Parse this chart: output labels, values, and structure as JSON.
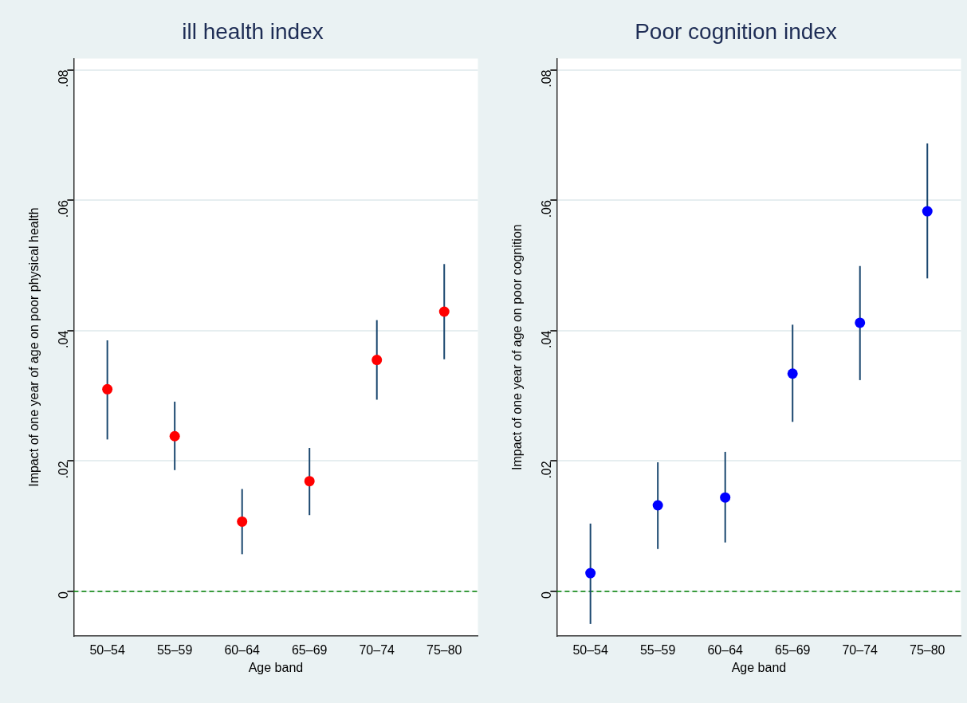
{
  "chart_data": [
    {
      "type": "scatter",
      "title": "ill health index",
      "xlabel": "Age band",
      "ylabel": "Impact of one year of age on poor physical health",
      "categories": [
        "50–54",
        "55–59",
        "60–64",
        "65–69",
        "70–74",
        "75–80"
      ],
      "series": [
        {
          "color": "#ff0000",
          "values": [
            0.031,
            0.0238,
            0.0107,
            0.0169,
            0.0355,
            0.0429
          ],
          "errors": [
            [
              0.0233,
              0.0385
            ],
            [
              0.0186,
              0.0291
            ],
            [
              0.0057,
              0.0157
            ],
            [
              0.0117,
              0.022
            ],
            [
              0.0294,
              0.0416
            ],
            [
              0.0356,
              0.0502
            ]
          ]
        }
      ],
      "ylim": [
        -0.0068,
        0.0817
      ],
      "yticks": [
        {
          "value": 0,
          "label": "0"
        },
        {
          "value": 0.02,
          "label": ".02"
        },
        {
          "value": 0.04,
          "label": ".04"
        },
        {
          "value": 0.06,
          "label": ".06"
        },
        {
          "value": 0.08,
          "label": ".08"
        }
      ],
      "ref_lines": [
        {
          "axis": "y",
          "value": 0,
          "color": "#008000",
          "line_style": "dashed"
        }
      ],
      "grid": "y",
      "marker": "circle",
      "legend": false
    },
    {
      "type": "scatter",
      "title": "Poor cognition index",
      "xlabel": "Age band",
      "ylabel": "Impact of one year of age on poor cognition",
      "categories": [
        "50–54",
        "55–59",
        "60–64",
        "65–69",
        "70–74",
        "75–80"
      ],
      "series": [
        {
          "color": "#0000ff",
          "values": [
            0.0028,
            0.0132,
            0.0144,
            0.0334,
            0.0412,
            0.0583
          ],
          "errors": [
            [
              -0.005,
              0.0104
            ],
            [
              0.0065,
              0.0198
            ],
            [
              0.0075,
              0.0214
            ],
            [
              0.026,
              0.0409
            ],
            [
              0.0324,
              0.0499
            ],
            [
              0.048,
              0.0687
            ]
          ]
        }
      ],
      "ylim": [
        -0.0068,
        0.0817
      ],
      "yticks": [
        {
          "value": 0,
          "label": "0"
        },
        {
          "value": 0.02,
          "label": ".02"
        },
        {
          "value": 0.04,
          "label": ".04"
        },
        {
          "value": 0.06,
          "label": ".06"
        },
        {
          "value": 0.08,
          "label": ".08"
        }
      ],
      "ref_lines": [
        {
          "axis": "y",
          "value": 0,
          "color": "#008000",
          "line_style": "dashed"
        }
      ],
      "grid": "y",
      "marker": "circle",
      "legend": false
    }
  ]
}
